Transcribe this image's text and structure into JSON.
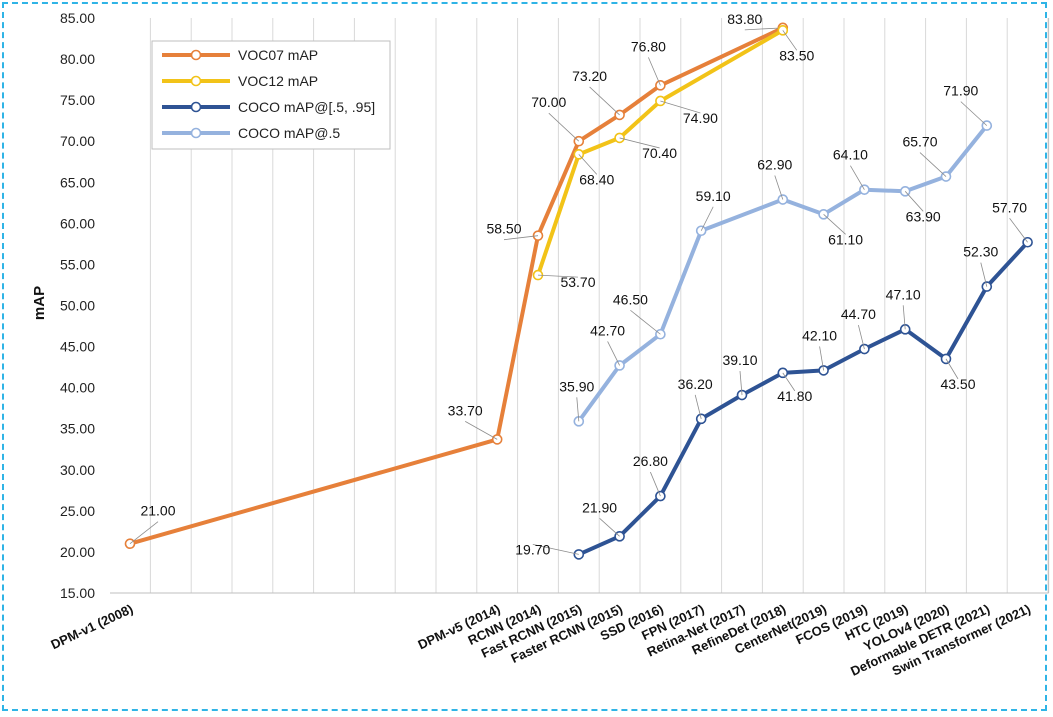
{
  "chart_data": {
    "type": "line",
    "ylabel": "mAP",
    "xlabel": "",
    "ylim": [
      15,
      85
    ],
    "yticks": [
      "15.00",
      "20.00",
      "25.00",
      "30.00",
      "35.00",
      "40.00",
      "45.00",
      "50.00",
      "55.00",
      "60.00",
      "65.00",
      "70.00",
      "75.00",
      "80.00",
      "85.00"
    ],
    "grid": "vertical",
    "legend": "top-left",
    "categories": [
      "DPM-v1 (2008)",
      "",
      "",
      "",
      "",
      "",
      "",
      "",
      "",
      "DPM-v5 (2014)",
      "RCNN (2014)",
      "Fast RCNN (2015)",
      "Faster RCNN (2015)",
      "SSD (2016)",
      "FPN (2017)",
      "Retina-Net (2017)",
      "RefineDet (2018)",
      "CenterNet(2019)",
      "FCOS (2019)",
      "HTC (2019)",
      "YOLOv4 (2020)",
      "Deformable DETR (2021)",
      "Swin Transformer (2021)"
    ],
    "series": [
      {
        "name": "VOC07 mAP",
        "color": "#e6803a",
        "values": [
          21.0,
          null,
          null,
          null,
          null,
          null,
          null,
          null,
          null,
          33.7,
          58.5,
          70.0,
          73.2,
          76.8,
          null,
          null,
          83.8,
          null,
          null,
          null,
          null,
          null,
          null
        ],
        "labels": [
          "21.00",
          null,
          null,
          null,
          null,
          null,
          null,
          null,
          null,
          "33.70",
          "58.50",
          "70.00",
          "73.20",
          "76.80",
          null,
          null,
          "83.80",
          null,
          null,
          null,
          null,
          null,
          null
        ]
      },
      {
        "name": "VOC12 mAP",
        "color": "#f2c318",
        "values": [
          null,
          null,
          null,
          null,
          null,
          null,
          null,
          null,
          null,
          null,
          53.7,
          68.4,
          70.4,
          74.9,
          null,
          null,
          83.5,
          null,
          null,
          null,
          null,
          null,
          null
        ],
        "labels": [
          null,
          null,
          null,
          null,
          null,
          null,
          null,
          null,
          null,
          null,
          "53.70",
          "68.40",
          "70.40",
          "74.90",
          null,
          null,
          "83.50",
          null,
          null,
          null,
          null,
          null,
          null
        ]
      },
      {
        "name": "COCO mAP@[.5, .95]",
        "color": "#2e5394",
        "values": [
          null,
          null,
          null,
          null,
          null,
          null,
          null,
          null,
          null,
          null,
          null,
          19.7,
          21.9,
          26.8,
          36.2,
          39.1,
          41.8,
          42.1,
          44.7,
          47.1,
          43.5,
          52.3,
          57.7
        ],
        "labels": [
          null,
          null,
          null,
          null,
          null,
          null,
          null,
          null,
          null,
          null,
          null,
          "19.70",
          "21.90",
          "26.80",
          "36.20",
          "39.10",
          "41.80",
          "42.10",
          "44.70",
          "47.10",
          "43.50",
          "52.30",
          "57.70"
        ]
      },
      {
        "name": "COCO mAP@.5",
        "color": "#95b2de",
        "values": [
          null,
          null,
          null,
          null,
          null,
          null,
          null,
          null,
          null,
          null,
          null,
          35.9,
          42.7,
          46.5,
          59.1,
          null,
          62.9,
          61.1,
          64.1,
          63.9,
          65.7,
          71.9,
          null
        ],
        "labels": [
          null,
          null,
          null,
          null,
          null,
          null,
          null,
          null,
          null,
          null,
          null,
          "35.90",
          "42.70",
          "46.50",
          "59.10",
          null,
          "62.90",
          "61.10",
          "64.10",
          "63.90",
          "65.70",
          "71.90",
          null
        ]
      }
    ]
  }
}
